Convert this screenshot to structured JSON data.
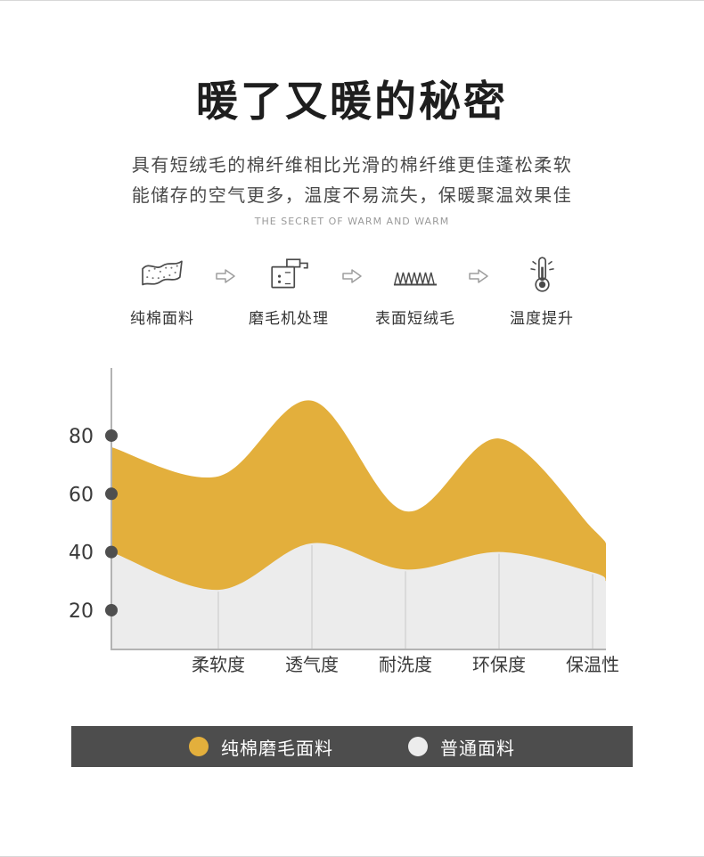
{
  "header": {
    "title": "暖了又暖的秘密",
    "subtitle_line1": "具有短绒毛的棉纤维相比光滑的棉纤维更佳蓬松柔软",
    "subtitle_line2": "能储存的空气更多，温度不易流失，保暖聚温效果佳",
    "tagline": "THE SECRET OF WARM AND WARM"
  },
  "process": {
    "steps": [
      {
        "label": "纯棉面料",
        "icon": "fabric-icon"
      },
      {
        "label": "磨毛机处理",
        "icon": "brushing-machine-icon"
      },
      {
        "label": "表面短绒毛",
        "icon": "short-fluff-icon"
      },
      {
        "label": "温度提升",
        "icon": "thermometer-icon"
      }
    ]
  },
  "chart_data": {
    "type": "area",
    "title": "",
    "categories": [
      "柔软度",
      "透气度",
      "耐洗度",
      "环保度",
      "保温性"
    ],
    "y_ticks": [
      80,
      60,
      40,
      20
    ],
    "ylim": [
      0,
      100
    ],
    "series": [
      {
        "name": "纯棉磨毛面料",
        "color": "#E3AF3C",
        "values": [
          66,
          92,
          54,
          79,
          48
        ],
        "left_edge": 76,
        "right_edge": 43
      },
      {
        "name": "普通面料",
        "color": "#ECECEC",
        "values": [
          27,
          43,
          34,
          40,
          33
        ],
        "left_edge": 40,
        "right_edge": 30
      }
    ],
    "axis_color": "#b3b3b3",
    "tick_dot_color": "#4f4f4f",
    "grid_line_color": "#c9c9c9",
    "legend_position": "bottom"
  },
  "legend": {
    "background": "#4D4D4D"
  }
}
